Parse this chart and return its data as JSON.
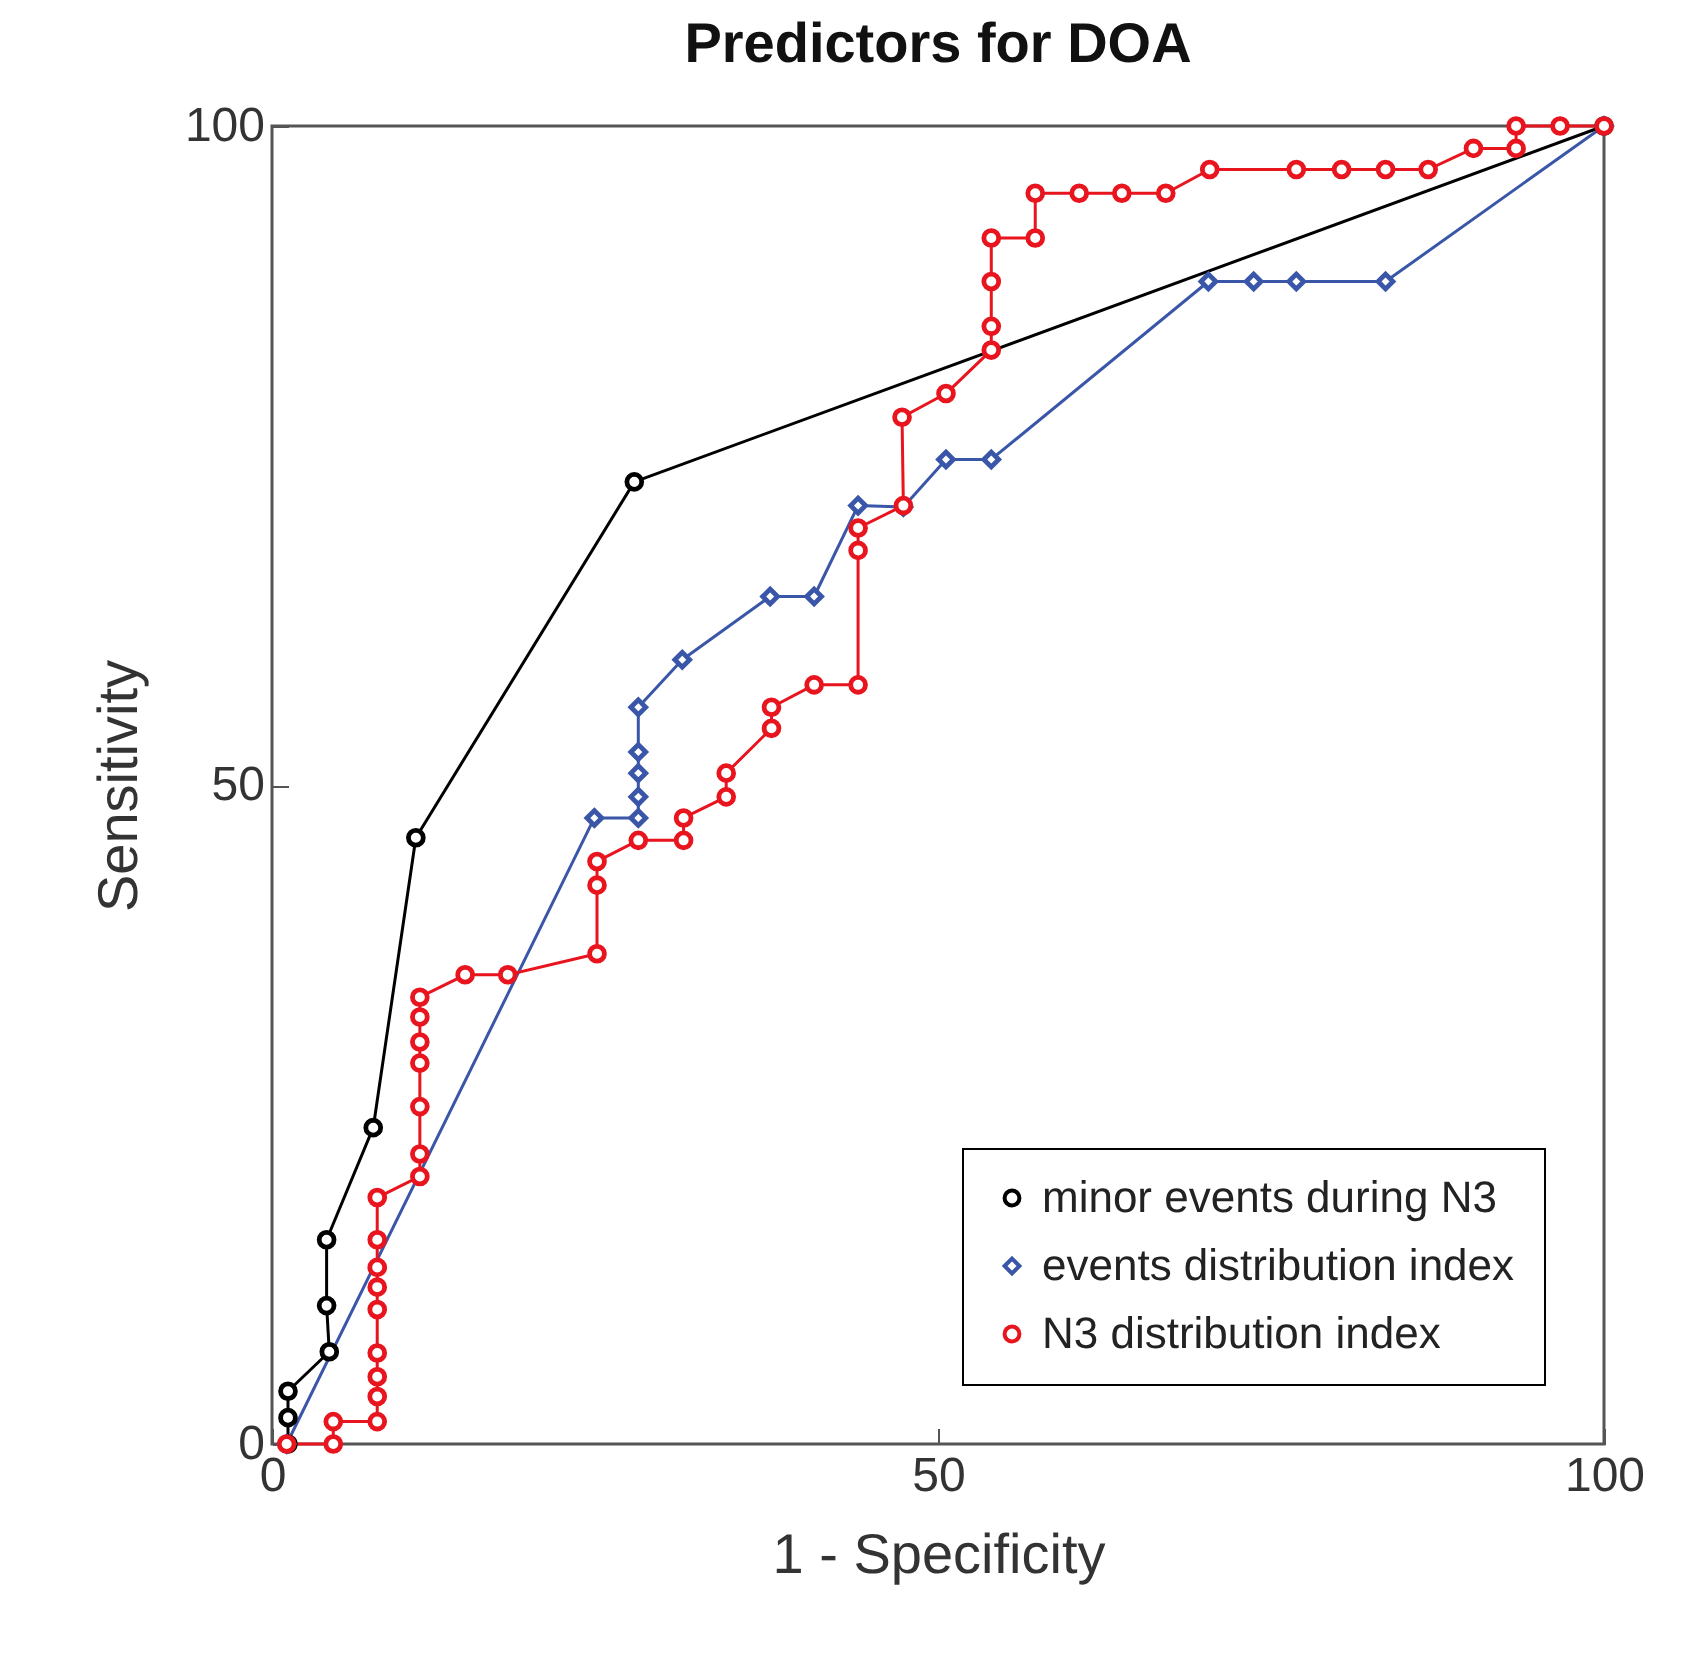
{
  "chart_data": {
    "type": "line",
    "title": "Predictors for DOA",
    "xlabel": "1 - Specificity",
    "ylabel": "Sensitivity",
    "xlim": [
      0,
      100
    ],
    "ylim": [
      0,
      100
    ],
    "xticks": [
      0,
      50,
      100
    ],
    "yticks": [
      0,
      50,
      100
    ],
    "grid": false,
    "legend": "bottom right",
    "series": [
      {
        "name": "minor events during N3",
        "color": "#000000",
        "marker": "circle",
        "x": [
          1.2,
          1.2,
          1.2,
          4.3,
          4.1,
          4.1,
          7.6,
          10.8,
          27.2,
          100
        ],
        "values": [
          0,
          2,
          4,
          7,
          10.5,
          15.5,
          24,
          46,
          73,
          100
        ]
      },
      {
        "name": "events distribution index",
        "color": "#3a56a8",
        "marker": "diamond",
        "x": [
          1.1,
          24.2,
          27.5,
          27.5,
          27.5,
          27.5,
          27.5,
          30.8,
          37.4,
          40.7,
          44.0,
          47.4,
          50.6,
          54.0,
          70.3,
          73.7,
          76.9,
          83.6,
          100
        ],
        "values": [
          0,
          47.5,
          47.5,
          49.1,
          50.9,
          52.5,
          55.9,
          59.5,
          64.3,
          64.3,
          71.2,
          71.1,
          74.7,
          74.7,
          88.2,
          88.2,
          88.2,
          88.2,
          100
        ]
      },
      {
        "name": "N3 distribution index",
        "color": "#e8141e",
        "marker": "circle",
        "x": [
          1.1,
          4.6,
          4.6,
          7.9,
          7.9,
          7.9,
          7.9,
          7.9,
          7.9,
          7.9,
          7.9,
          7.9,
          11.1,
          11.1,
          11.1,
          11.1,
          11.1,
          11.1,
          11.1,
          14.5,
          17.7,
          24.4,
          24.4,
          24.4,
          27.5,
          30.9,
          30.9,
          34.1,
          34.1,
          37.5,
          37.5,
          40.7,
          44.0,
          44.0,
          44.0,
          47.4,
          47.3,
          50.6,
          54.0,
          54.0,
          54.0,
          54.0,
          57.3,
          57.3,
          60.6,
          63.8,
          67.1,
          70.4,
          76.9,
          80.3,
          83.6,
          86.8,
          90.2,
          93.4,
          93.4,
          96.7,
          100
        ],
        "values": [
          0,
          0,
          1.7,
          1.7,
          3.6,
          5.1,
          6.9,
          10.2,
          11.9,
          13.4,
          15.5,
          18.7,
          20.3,
          22.0,
          25.6,
          28.9,
          30.5,
          32.4,
          33.9,
          35.6,
          35.6,
          37.2,
          42.4,
          44.2,
          45.8,
          45.8,
          47.5,
          49.1,
          50.9,
          54.3,
          55.9,
          57.6,
          57.6,
          67.8,
          69.5,
          71.2,
          77.9,
          79.7,
          83.0,
          84.8,
          88.2,
          91.5,
          91.5,
          94.9,
          94.9,
          94.9,
          94.9,
          96.7,
          96.7,
          96.7,
          96.7,
          96.7,
          98.3,
          98.3,
          100,
          100,
          100
        ]
      }
    ]
  }
}
